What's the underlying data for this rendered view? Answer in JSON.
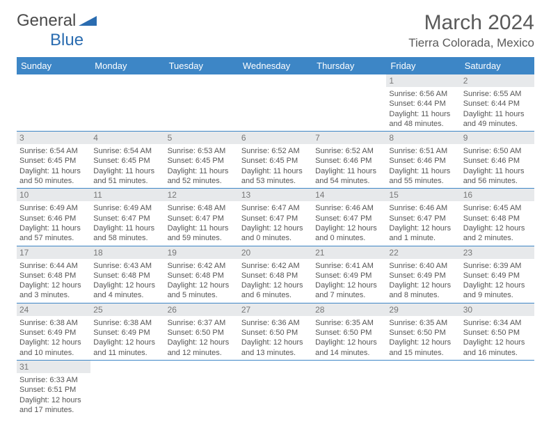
{
  "brand": {
    "part1": "General",
    "part2": "Blue",
    "color1": "#4a4a4a",
    "color2": "#2a6cb0"
  },
  "title": {
    "month": "March 2024",
    "location": "Tierra Colorada, Mexico",
    "title_fontsize": 30,
    "location_fontsize": 17,
    "text_color": "#5a5a5a"
  },
  "theme": {
    "header_bg": "#3d86c6",
    "header_text": "#ffffff",
    "daynum_bg": "#e7e9eb",
    "daynum_text": "#777777",
    "body_text": "#555555",
    "rule_color": "#3d86c6"
  },
  "weekdays": [
    "Sunday",
    "Monday",
    "Tuesday",
    "Wednesday",
    "Thursday",
    "Friday",
    "Saturday"
  ],
  "weeks": [
    [
      null,
      null,
      null,
      null,
      null,
      {
        "n": "1",
        "sr": "Sunrise: 6:56 AM",
        "ss": "Sunset: 6:44 PM",
        "d1": "Daylight: 11 hours",
        "d2": "and 48 minutes."
      },
      {
        "n": "2",
        "sr": "Sunrise: 6:55 AM",
        "ss": "Sunset: 6:44 PM",
        "d1": "Daylight: 11 hours",
        "d2": "and 49 minutes."
      }
    ],
    [
      {
        "n": "3",
        "sr": "Sunrise: 6:54 AM",
        "ss": "Sunset: 6:45 PM",
        "d1": "Daylight: 11 hours",
        "d2": "and 50 minutes."
      },
      {
        "n": "4",
        "sr": "Sunrise: 6:54 AM",
        "ss": "Sunset: 6:45 PM",
        "d1": "Daylight: 11 hours",
        "d2": "and 51 minutes."
      },
      {
        "n": "5",
        "sr": "Sunrise: 6:53 AM",
        "ss": "Sunset: 6:45 PM",
        "d1": "Daylight: 11 hours",
        "d2": "and 52 minutes."
      },
      {
        "n": "6",
        "sr": "Sunrise: 6:52 AM",
        "ss": "Sunset: 6:45 PM",
        "d1": "Daylight: 11 hours",
        "d2": "and 53 minutes."
      },
      {
        "n": "7",
        "sr": "Sunrise: 6:52 AM",
        "ss": "Sunset: 6:46 PM",
        "d1": "Daylight: 11 hours",
        "d2": "and 54 minutes."
      },
      {
        "n": "8",
        "sr": "Sunrise: 6:51 AM",
        "ss": "Sunset: 6:46 PM",
        "d1": "Daylight: 11 hours",
        "d2": "and 55 minutes."
      },
      {
        "n": "9",
        "sr": "Sunrise: 6:50 AM",
        "ss": "Sunset: 6:46 PM",
        "d1": "Daylight: 11 hours",
        "d2": "and 56 minutes."
      }
    ],
    [
      {
        "n": "10",
        "sr": "Sunrise: 6:49 AM",
        "ss": "Sunset: 6:46 PM",
        "d1": "Daylight: 11 hours",
        "d2": "and 57 minutes."
      },
      {
        "n": "11",
        "sr": "Sunrise: 6:49 AM",
        "ss": "Sunset: 6:47 PM",
        "d1": "Daylight: 11 hours",
        "d2": "and 58 minutes."
      },
      {
        "n": "12",
        "sr": "Sunrise: 6:48 AM",
        "ss": "Sunset: 6:47 PM",
        "d1": "Daylight: 11 hours",
        "d2": "and 59 minutes."
      },
      {
        "n": "13",
        "sr": "Sunrise: 6:47 AM",
        "ss": "Sunset: 6:47 PM",
        "d1": "Daylight: 12 hours",
        "d2": "and 0 minutes."
      },
      {
        "n": "14",
        "sr": "Sunrise: 6:46 AM",
        "ss": "Sunset: 6:47 PM",
        "d1": "Daylight: 12 hours",
        "d2": "and 0 minutes."
      },
      {
        "n": "15",
        "sr": "Sunrise: 6:46 AM",
        "ss": "Sunset: 6:47 PM",
        "d1": "Daylight: 12 hours",
        "d2": "and 1 minute."
      },
      {
        "n": "16",
        "sr": "Sunrise: 6:45 AM",
        "ss": "Sunset: 6:48 PM",
        "d1": "Daylight: 12 hours",
        "d2": "and 2 minutes."
      }
    ],
    [
      {
        "n": "17",
        "sr": "Sunrise: 6:44 AM",
        "ss": "Sunset: 6:48 PM",
        "d1": "Daylight: 12 hours",
        "d2": "and 3 minutes."
      },
      {
        "n": "18",
        "sr": "Sunrise: 6:43 AM",
        "ss": "Sunset: 6:48 PM",
        "d1": "Daylight: 12 hours",
        "d2": "and 4 minutes."
      },
      {
        "n": "19",
        "sr": "Sunrise: 6:42 AM",
        "ss": "Sunset: 6:48 PM",
        "d1": "Daylight: 12 hours",
        "d2": "and 5 minutes."
      },
      {
        "n": "20",
        "sr": "Sunrise: 6:42 AM",
        "ss": "Sunset: 6:48 PM",
        "d1": "Daylight: 12 hours",
        "d2": "and 6 minutes."
      },
      {
        "n": "21",
        "sr": "Sunrise: 6:41 AM",
        "ss": "Sunset: 6:49 PM",
        "d1": "Daylight: 12 hours",
        "d2": "and 7 minutes."
      },
      {
        "n": "22",
        "sr": "Sunrise: 6:40 AM",
        "ss": "Sunset: 6:49 PM",
        "d1": "Daylight: 12 hours",
        "d2": "and 8 minutes."
      },
      {
        "n": "23",
        "sr": "Sunrise: 6:39 AM",
        "ss": "Sunset: 6:49 PM",
        "d1": "Daylight: 12 hours",
        "d2": "and 9 minutes."
      }
    ],
    [
      {
        "n": "24",
        "sr": "Sunrise: 6:38 AM",
        "ss": "Sunset: 6:49 PM",
        "d1": "Daylight: 12 hours",
        "d2": "and 10 minutes."
      },
      {
        "n": "25",
        "sr": "Sunrise: 6:38 AM",
        "ss": "Sunset: 6:49 PM",
        "d1": "Daylight: 12 hours",
        "d2": "and 11 minutes."
      },
      {
        "n": "26",
        "sr": "Sunrise: 6:37 AM",
        "ss": "Sunset: 6:50 PM",
        "d1": "Daylight: 12 hours",
        "d2": "and 12 minutes."
      },
      {
        "n": "27",
        "sr": "Sunrise: 6:36 AM",
        "ss": "Sunset: 6:50 PM",
        "d1": "Daylight: 12 hours",
        "d2": "and 13 minutes."
      },
      {
        "n": "28",
        "sr": "Sunrise: 6:35 AM",
        "ss": "Sunset: 6:50 PM",
        "d1": "Daylight: 12 hours",
        "d2": "and 14 minutes."
      },
      {
        "n": "29",
        "sr": "Sunrise: 6:35 AM",
        "ss": "Sunset: 6:50 PM",
        "d1": "Daylight: 12 hours",
        "d2": "and 15 minutes."
      },
      {
        "n": "30",
        "sr": "Sunrise: 6:34 AM",
        "ss": "Sunset: 6:50 PM",
        "d1": "Daylight: 12 hours",
        "d2": "and 16 minutes."
      }
    ],
    [
      {
        "n": "31",
        "sr": "Sunrise: 6:33 AM",
        "ss": "Sunset: 6:51 PM",
        "d1": "Daylight: 12 hours",
        "d2": "and 17 minutes."
      },
      null,
      null,
      null,
      null,
      null,
      null
    ]
  ]
}
